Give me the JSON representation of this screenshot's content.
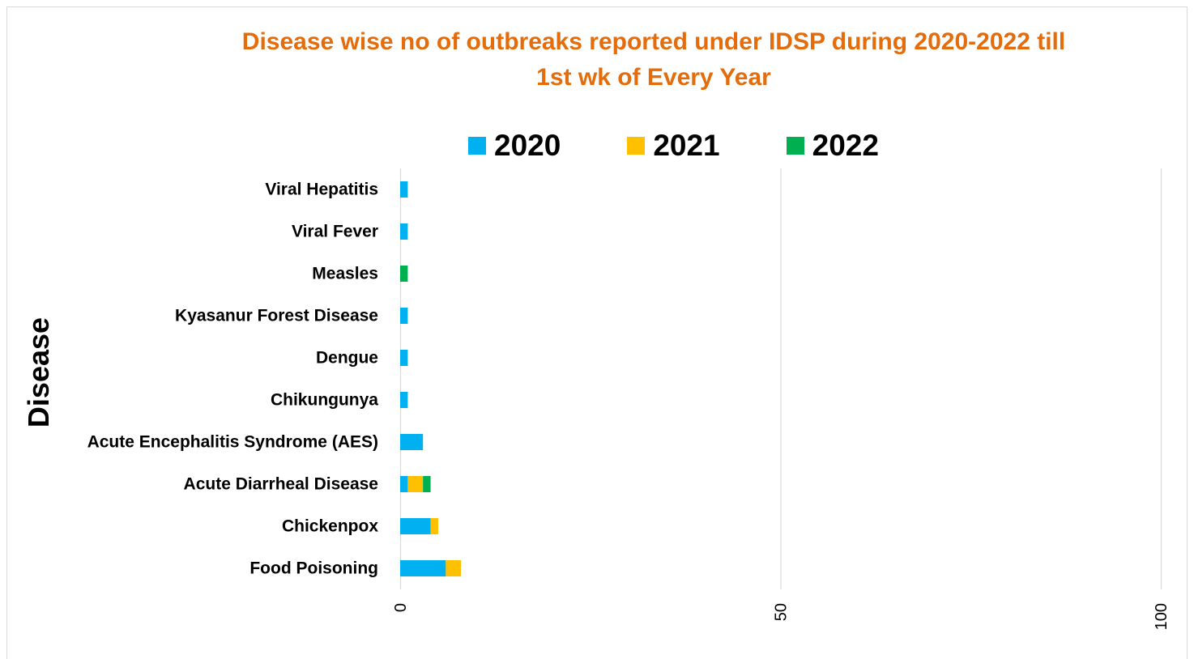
{
  "chart_data": {
    "type": "bar",
    "orientation": "horizontal",
    "stacked": true,
    "title": "Disease wise no of outbreaks reported under IDSP during  2020-2022 till 1st wk of Every Year",
    "title_lines": [
      "Disease wise no of outbreaks reported under IDSP during  2020-2022 till",
      "1st wk of Every Year"
    ],
    "ylabel": "Disease",
    "xlabel": "",
    "xlim": [
      0,
      100
    ],
    "xticks": [
      "0",
      "50",
      "100"
    ],
    "xtick_values": [
      0,
      50,
      100
    ],
    "grid": true,
    "legend_position": "top",
    "categories": [
      "Viral Hepatitis",
      "Viral Fever",
      "Measles",
      "Kyasanur Forest Disease",
      "Dengue",
      "Chikungunya",
      "Acute Encephalitis Syndrome (AES)",
      "Acute Diarrheal Disease",
      "Chickenpox",
      "Food Poisoning"
    ],
    "series": [
      {
        "name": "2020",
        "color": "#00b0f0",
        "values": [
          1,
          1,
          0,
          1,
          1,
          1,
          3,
          1,
          4,
          6
        ]
      },
      {
        "name": "2021",
        "color": "#ffc000",
        "values": [
          0,
          0,
          0,
          0,
          0,
          0,
          0,
          2,
          1,
          2
        ]
      },
      {
        "name": "2022",
        "color": "#00b050",
        "values": [
          0,
          0,
          1,
          0,
          0,
          0,
          0,
          1,
          0,
          0
        ]
      }
    ]
  }
}
